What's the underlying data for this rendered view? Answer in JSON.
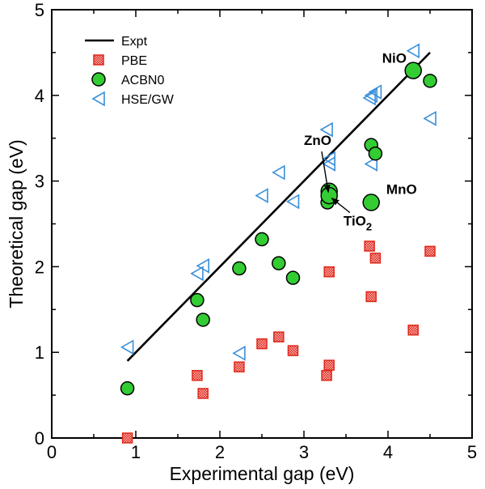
{
  "chart_data": {
    "type": "scatter",
    "title": "",
    "xlabel": "Experimental gap (eV)",
    "ylabel": "Theoretical gap (eV)",
    "xlim": [
      0,
      5
    ],
    "ylim": [
      0,
      5
    ],
    "xticks": [
      "0",
      "1",
      "2",
      "3",
      "4",
      "5"
    ],
    "yticks": [
      "0",
      "1",
      "2",
      "3",
      "4",
      "5"
    ],
    "grid": false,
    "legend_position": "top-left",
    "colors": {
      "expt": "#000000",
      "pbe_edge": "#e0261b",
      "pbe_fill": "#f6b5b0",
      "acbn0_fill": "#33cc33",
      "acbn0_edge": "#000000",
      "hse_edge": "#3a8fd9"
    },
    "series": [
      {
        "name": "Expt",
        "marker": "line",
        "x": [
          0.9,
          4.5
        ],
        "y": [
          0.9,
          4.5
        ]
      },
      {
        "name": "PBE",
        "marker": "square",
        "x": [
          0.9,
          1.73,
          1.8,
          2.23,
          2.5,
          2.7,
          2.87,
          3.27,
          3.3,
          3.3,
          3.78,
          3.8,
          3.85,
          4.3,
          4.5
        ],
        "y": [
          0.0,
          0.73,
          0.52,
          0.83,
          1.1,
          1.18,
          1.02,
          0.73,
          0.85,
          1.94,
          2.24,
          1.65,
          2.1,
          1.26,
          2.18
        ]
      },
      {
        "name": "ACBN0",
        "marker": "circle",
        "x": [
          0.9,
          1.73,
          1.8,
          2.23,
          2.5,
          2.7,
          2.87,
          3.28,
          3.3,
          3.3,
          3.8,
          3.8,
          3.85,
          4.3,
          4.5
        ],
        "y": [
          0.58,
          1.61,
          1.38,
          1.98,
          2.32,
          2.04,
          1.87,
          2.75,
          2.88,
          2.83,
          3.42,
          2.75,
          3.32,
          4.29,
          4.17
        ],
        "sizes": [
          1,
          1,
          1,
          1,
          1,
          1,
          1,
          1,
          1.25,
          1.25,
          1,
          1.25,
          1,
          1.25,
          1
        ]
      },
      {
        "name": "HSE/GW",
        "marker": "triangle-left",
        "x": [
          0.9,
          1.73,
          1.8,
          2.23,
          2.5,
          2.7,
          2.87,
          3.27,
          3.3,
          3.3,
          3.78,
          3.8,
          3.85,
          3.8,
          4.3,
          4.5
        ],
        "y": [
          1.06,
          1.92,
          2.01,
          0.99,
          2.83,
          3.1,
          2.76,
          3.6,
          3.2,
          3.26,
          3.97,
          3.2,
          4.04,
          4.0,
          4.52,
          3.73
        ]
      }
    ],
    "annotations": [
      {
        "id": "nio",
        "label": "NiO",
        "x": 3.93,
        "y": 4.38
      },
      {
        "id": "zno",
        "label": "ZnO",
        "x": 3.0,
        "y": 3.42,
        "arrow_to": [
          3.29,
          2.87
        ]
      },
      {
        "id": "mno",
        "label": "MnO",
        "x": 3.98,
        "y": 2.85
      },
      {
        "id": "tio2",
        "label": "TiO",
        "subscript": "2",
        "x": 3.47,
        "y": 2.48,
        "arrow_to": [
          3.33,
          2.8
        ]
      }
    ]
  }
}
